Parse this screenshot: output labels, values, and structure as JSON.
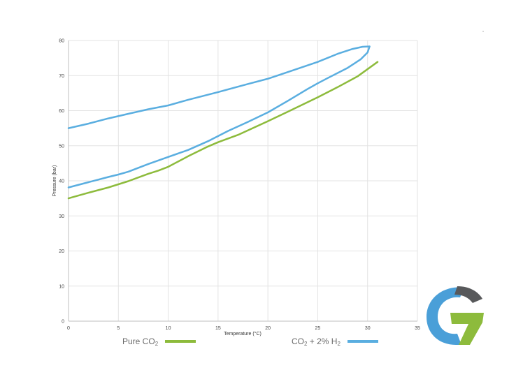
{
  "chart_data": {
    "type": "line",
    "title": "",
    "xlabel": "Temperature (°C)",
    "ylabel": "Pressure (bar)",
    "xlim": [
      0,
      35
    ],
    "ylim": [
      0,
      80
    ],
    "x_ticks": [
      0,
      5,
      10,
      15,
      20,
      25,
      30,
      35
    ],
    "y_ticks": [
      0,
      10,
      20,
      30,
      40,
      50,
      60,
      70,
      80
    ],
    "grid": true,
    "legend_position": "bottom",
    "series": [
      {
        "name": "Pure CO2",
        "color": "#8dbb3c",
        "points": [
          [
            0,
            35
          ],
          [
            2,
            36.6
          ],
          [
            4,
            38.1
          ],
          [
            6,
            39.9
          ],
          [
            8,
            42
          ],
          [
            9,
            42.9
          ],
          [
            10,
            44
          ],
          [
            12,
            47
          ],
          [
            14,
            49.8
          ],
          [
            15,
            51
          ],
          [
            17,
            53.1
          ],
          [
            20,
            57
          ],
          [
            22,
            59.7
          ],
          [
            25,
            63.8
          ],
          [
            27,
            66.7
          ],
          [
            29,
            69.8
          ],
          [
            31,
            73.9
          ]
        ]
      },
      {
        "name": "CO2 + 2% H2",
        "color": "#5aaee0",
        "points": [
          [
            0,
            38.1
          ],
          [
            2,
            39.6
          ],
          [
            4,
            41.1
          ],
          [
            5,
            41.8
          ],
          [
            6,
            42.6
          ],
          [
            8,
            44.8
          ],
          [
            10,
            46.8
          ],
          [
            12,
            48.8
          ],
          [
            14,
            51.3
          ],
          [
            16,
            54.2
          ],
          [
            18,
            56.8
          ],
          [
            20,
            59.5
          ],
          [
            22,
            62.8
          ],
          [
            24,
            66.2
          ],
          [
            25,
            67.8
          ],
          [
            26,
            69.3
          ],
          [
            28,
            72.2
          ],
          [
            29.3,
            74.6
          ],
          [
            30,
            76.6
          ],
          [
            30.2,
            78.3
          ],
          [
            29.5,
            78.2
          ],
          [
            28.5,
            77.6
          ],
          [
            27,
            76.2
          ],
          [
            25,
            73.9
          ],
          [
            22,
            71
          ],
          [
            20,
            69.1
          ],
          [
            18,
            67.6
          ],
          [
            15,
            65.3
          ],
          [
            12,
            63.1
          ],
          [
            10,
            61.5
          ],
          [
            8,
            60.4
          ],
          [
            6,
            59.1
          ],
          [
            4,
            57.8
          ],
          [
            2,
            56.3
          ],
          [
            0,
            55
          ]
        ]
      }
    ],
    "legend": [
      {
        "label": "Pure CO",
        "sub": "2",
        "color": "#8dbb3c"
      },
      {
        "label": "CO",
        "sub": "2",
        "label_mid": " + 2% H",
        "sub2": "2",
        "color": "#5aaee0"
      }
    ]
  },
  "logo": {
    "name": "g-logo",
    "colors": [
      "#4a9fd8",
      "#8dbb3c",
      "#58595b"
    ]
  }
}
